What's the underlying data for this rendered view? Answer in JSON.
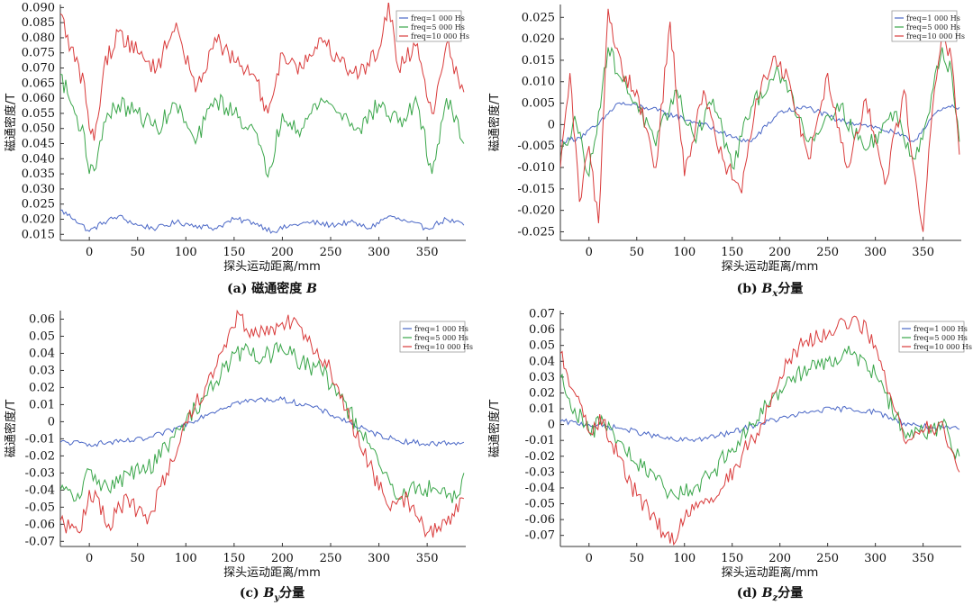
{
  "colors": {
    "freq_1000": "#4a67c6",
    "freq_5000": "#3aa64a",
    "freq_10000": "#d93b3b"
  },
  "chart_data": [
    {
      "id": "a",
      "type": "line",
      "caption_prefix": "(a) 磁通密度 ",
      "caption_symbol": "B",
      "caption_sub": "",
      "caption_suffix": "",
      "xlabel": "探头运动距离/mm",
      "ylabel": "磁通密度/T",
      "xlim": [
        -30,
        390
      ],
      "ylim": [
        0.013,
        0.091
      ],
      "xticks": [
        0,
        50,
        100,
        150,
        200,
        250,
        300,
        350
      ],
      "xtick_labels": [
        "0",
        "50",
        "100",
        "150",
        "200",
        "250",
        "300",
        "350"
      ],
      "yticks": [
        0.015,
        0.02,
        0.025,
        0.03,
        0.035,
        0.04,
        0.045,
        0.05,
        0.055,
        0.06,
        0.065,
        0.07,
        0.075,
        0.08,
        0.085,
        0.09
      ],
      "ytick_labels": [
        "0.015",
        "0.020",
        "0.025",
        "0.030",
        "0.035",
        "0.040",
        "0.045",
        "0.050",
        "0.055",
        "0.060",
        "0.065",
        "0.070",
        "0.075",
        "0.080",
        "0.085",
        "0.090"
      ],
      "legend": [
        "freq=1 000 Hs",
        "freq=5 000 Hs",
        "freq=10 000 Hs"
      ],
      "legend_position": "top-right",
      "grid": false,
      "series": [
        {
          "name": "freq=1 000 Hs",
          "color": "#4a67c6",
          "x": [
            -30,
            -15,
            0,
            15,
            30,
            50,
            70,
            90,
            110,
            130,
            150,
            170,
            190,
            210,
            230,
            250,
            270,
            290,
            310,
            330,
            350,
            370,
            388
          ],
          "y": [
            0.023,
            0.02,
            0.016,
            0.019,
            0.021,
            0.018,
            0.017,
            0.019,
            0.018,
            0.017,
            0.02,
            0.019,
            0.016,
            0.018,
            0.019,
            0.018,
            0.019,
            0.017,
            0.021,
            0.019,
            0.017,
            0.02,
            0.018
          ]
        },
        {
          "name": "freq=5 000 Hs",
          "color": "#3aa64a",
          "x": [
            -30,
            -15,
            -5,
            0,
            5,
            15,
            30,
            50,
            70,
            90,
            110,
            130,
            150,
            170,
            185,
            200,
            220,
            240,
            260,
            280,
            300,
            320,
            340,
            355,
            370,
            388
          ],
          "y": [
            0.068,
            0.055,
            0.048,
            0.035,
            0.036,
            0.052,
            0.058,
            0.055,
            0.05,
            0.058,
            0.045,
            0.06,
            0.055,
            0.05,
            0.034,
            0.055,
            0.05,
            0.06,
            0.055,
            0.05,
            0.058,
            0.052,
            0.058,
            0.035,
            0.06,
            0.045
          ]
        },
        {
          "name": "freq=10 000 Hs",
          "color": "#d93b3b",
          "x": [
            -30,
            -15,
            -5,
            0,
            5,
            15,
            30,
            50,
            70,
            90,
            110,
            130,
            150,
            170,
            185,
            200,
            220,
            240,
            260,
            280,
            300,
            310,
            320,
            340,
            355,
            370,
            388
          ],
          "y": [
            0.088,
            0.072,
            0.065,
            0.05,
            0.046,
            0.07,
            0.082,
            0.075,
            0.07,
            0.085,
            0.062,
            0.08,
            0.072,
            0.068,
            0.055,
            0.075,
            0.07,
            0.08,
            0.072,
            0.068,
            0.076,
            0.092,
            0.07,
            0.078,
            0.055,
            0.078,
            0.062
          ]
        }
      ]
    },
    {
      "id": "b",
      "type": "line",
      "caption_prefix": "(b) ",
      "caption_symbol": "B",
      "caption_sub": "x",
      "caption_suffix": "分量",
      "xlabel": "探头运动距离/mm",
      "ylabel": "磁通密度/T",
      "xlim": [
        -30,
        390
      ],
      "ylim": [
        -0.027,
        0.028
      ],
      "xticks": [
        0,
        50,
        100,
        150,
        200,
        250,
        300,
        350
      ],
      "xtick_labels": [
        "0",
        "50",
        "100",
        "150",
        "200",
        "250",
        "300",
        "350"
      ],
      "yticks": [
        -0.025,
        -0.02,
        -0.015,
        -0.01,
        -0.005,
        0,
        0.005,
        0.01,
        0.015,
        0.02,
        0.025
      ],
      "ytick_labels": [
        "-0.025",
        "-0.020",
        "-0.015",
        "-0.010",
        "-0.005",
        "0",
        "0.005",
        "0.010",
        "0.015",
        "0.020",
        "0.025"
      ],
      "legend": [
        "freq=1 000 Hs",
        "freq=5 000 Hs",
        "freq=10 000 Hs"
      ],
      "legend_position": "top-right",
      "grid": false,
      "series": [
        {
          "name": "freq=1 000 Hs",
          "color": "#4a67c6",
          "x": [
            -30,
            -10,
            10,
            30,
            60,
            90,
            120,
            150,
            170,
            200,
            230,
            260,
            290,
            320,
            340,
            360,
            375,
            388
          ],
          "y": [
            -0.004,
            -0.003,
            0.0,
            0.005,
            0.004,
            0.002,
            0.0,
            -0.003,
            -0.004,
            0.003,
            0.004,
            0.001,
            0.0,
            -0.002,
            -0.004,
            0.002,
            0.004,
            0.004
          ]
        },
        {
          "name": "freq=5 000 Hs",
          "color": "#3aa64a",
          "x": [
            -30,
            -15,
            0,
            10,
            20,
            35,
            50,
            70,
            90,
            110,
            130,
            150,
            170,
            195,
            210,
            230,
            260,
            290,
            320,
            340,
            355,
            370,
            380,
            388
          ],
          "y": [
            -0.008,
            0.002,
            -0.012,
            0.003,
            0.018,
            0.01,
            0.005,
            -0.005,
            0.008,
            -0.003,
            0.006,
            -0.01,
            0.004,
            0.012,
            0.008,
            -0.004,
            0.005,
            -0.006,
            0.003,
            -0.008,
            0.002,
            0.018,
            0.012,
            -0.004
          ]
        },
        {
          "name": "freq=10 000 Hs",
          "color": "#d93b3b",
          "x": [
            -30,
            -20,
            -10,
            0,
            10,
            20,
            35,
            50,
            70,
            85,
            100,
            120,
            140,
            160,
            175,
            195,
            210,
            230,
            250,
            270,
            290,
            310,
            330,
            350,
            360,
            370,
            380,
            388
          ],
          "y": [
            -0.01,
            0.012,
            -0.018,
            -0.005,
            -0.023,
            0.027,
            0.012,
            0.008,
            -0.01,
            0.024,
            -0.012,
            0.008,
            -0.008,
            -0.016,
            0.006,
            0.016,
            0.01,
            -0.008,
            0.012,
            -0.01,
            0.006,
            -0.014,
            0.008,
            -0.025,
            0.004,
            0.022,
            0.015,
            -0.007
          ]
        }
      ]
    },
    {
      "id": "c",
      "type": "line",
      "caption_prefix": "(c) ",
      "caption_symbol": "B",
      "caption_sub": "y",
      "caption_suffix": "分量",
      "xlabel": "探头运动距离/mm",
      "ylabel": "磁通密度/T",
      "xlim": [
        -30,
        390
      ],
      "ylim": [
        -0.073,
        0.065
      ],
      "xticks": [
        0,
        50,
        100,
        150,
        200,
        250,
        300,
        350
      ],
      "xtick_labels": [
        "0",
        "50",
        "100",
        "150",
        "200",
        "250",
        "300",
        "350"
      ],
      "yticks": [
        -0.07,
        -0.06,
        -0.05,
        -0.04,
        -0.03,
        -0.02,
        -0.01,
        0,
        0.01,
        0.02,
        0.03,
        0.04,
        0.05,
        0.06
      ],
      "ytick_labels": [
        "-0.07",
        "-0.06",
        "-0.05",
        "-0.04",
        "-0.03",
        "-0.02",
        "-0.01",
        "0",
        "0.01",
        "0.02",
        "0.03",
        "0.04",
        "0.05",
        "0.06"
      ],
      "legend": [
        "freq=1 000 Hs",
        "freq=5 000 Hs",
        "freq=10 000 Hs"
      ],
      "legend_position": "top-right",
      "grid": false,
      "series": [
        {
          "name": "freq=1 000 Hs",
          "color": "#4a67c6",
          "x": [
            -30,
            0,
            30,
            60,
            90,
            120,
            150,
            180,
            200,
            230,
            260,
            290,
            320,
            350,
            388
          ],
          "y": [
            -0.012,
            -0.013,
            -0.012,
            -0.01,
            -0.004,
            0.004,
            0.011,
            0.013,
            0.013,
            0.009,
            0.002,
            -0.006,
            -0.011,
            -0.013,
            -0.012
          ]
        },
        {
          "name": "freq=5 000 Hs",
          "color": "#3aa64a",
          "x": [
            -30,
            -10,
            0,
            20,
            40,
            60,
            80,
            100,
            120,
            140,
            160,
            180,
            200,
            220,
            240,
            260,
            280,
            300,
            320,
            340,
            360,
            380,
            388
          ],
          "y": [
            -0.04,
            -0.045,
            -0.028,
            -0.04,
            -0.03,
            -0.028,
            -0.015,
            0.0,
            0.015,
            0.032,
            0.042,
            0.038,
            0.042,
            0.035,
            0.03,
            0.015,
            -0.005,
            -0.025,
            -0.045,
            -0.038,
            -0.04,
            -0.045,
            -0.03
          ]
        },
        {
          "name": "freq=10 000 Hs",
          "color": "#d93b3b",
          "x": [
            -30,
            -10,
            0,
            20,
            40,
            60,
            80,
            100,
            120,
            140,
            155,
            170,
            190,
            210,
            230,
            250,
            270,
            290,
            310,
            330,
            350,
            370,
            388
          ],
          "y": [
            -0.058,
            -0.065,
            -0.04,
            -0.06,
            -0.045,
            -0.06,
            -0.03,
            0.0,
            0.02,
            0.045,
            0.063,
            0.05,
            0.055,
            0.058,
            0.045,
            0.03,
            0.0,
            -0.025,
            -0.05,
            -0.045,
            -0.065,
            -0.06,
            -0.045
          ]
        }
      ]
    },
    {
      "id": "d",
      "type": "line",
      "caption_prefix": "(d) ",
      "caption_symbol": "B",
      "caption_sub": "z",
      "caption_suffix": "分量",
      "xlabel": "探头运动距离/mm",
      "ylabel": "磁通密度/T",
      "xlim": [
        -30,
        390
      ],
      "ylim": [
        -0.077,
        0.072
      ],
      "xticks": [
        0,
        50,
        100,
        150,
        200,
        250,
        300,
        350
      ],
      "xtick_labels": [
        "0",
        "50",
        "100",
        "150",
        "200",
        "250",
        "300",
        "350"
      ],
      "yticks": [
        -0.07,
        -0.06,
        -0.05,
        -0.04,
        -0.03,
        -0.02,
        -0.01,
        0,
        0.01,
        0.02,
        0.03,
        0.04,
        0.05,
        0.06,
        0.07
      ],
      "ytick_labels": [
        "-0.07",
        "-0.06",
        "-0.05",
        "-0.04",
        "-0.03",
        "-0.02",
        "-0.01",
        "0",
        "0.01",
        "0.02",
        "0.03",
        "0.04",
        "0.05",
        "0.06",
        "0.07"
      ],
      "legend": [
        "freq=1 000 Hs",
        "freq=5 000 Hs",
        "freq=10 000 Hs"
      ],
      "legend_position": "top-right",
      "grid": false,
      "series": [
        {
          "name": "freq=1 000 Hs",
          "color": "#4a67c6",
          "x": [
            -30,
            0,
            30,
            60,
            90,
            120,
            150,
            180,
            210,
            240,
            270,
            300,
            330,
            360,
            388
          ],
          "y": [
            0.002,
            0.0,
            -0.002,
            -0.006,
            -0.01,
            -0.009,
            -0.005,
            0.001,
            0.005,
            0.009,
            0.01,
            0.008,
            0.001,
            -0.002,
            -0.003
          ]
        },
        {
          "name": "freq=5 000 Hs",
          "color": "#3aa64a",
          "x": [
            -30,
            -15,
            0,
            15,
            30,
            50,
            70,
            90,
            110,
            130,
            150,
            170,
            190,
            210,
            230,
            250,
            270,
            290,
            310,
            330,
            350,
            370,
            388
          ],
          "y": [
            0.03,
            0.01,
            -0.005,
            0.002,
            -0.01,
            -0.025,
            -0.035,
            -0.045,
            -0.04,
            -0.03,
            -0.015,
            0.0,
            0.015,
            0.03,
            0.035,
            0.04,
            0.045,
            0.04,
            0.02,
            -0.005,
            -0.005,
            0.0,
            -0.02
          ]
        },
        {
          "name": "freq=10 000 Hs",
          "color": "#d93b3b",
          "x": [
            -30,
            -15,
            0,
            15,
            30,
            50,
            70,
            85,
            100,
            120,
            140,
            160,
            180,
            200,
            220,
            240,
            260,
            280,
            300,
            315,
            330,
            350,
            370,
            388
          ],
          "y": [
            0.045,
            0.02,
            -0.005,
            0.003,
            -0.02,
            -0.045,
            -0.06,
            -0.075,
            -0.06,
            -0.05,
            -0.04,
            -0.02,
            0.0,
            0.03,
            0.05,
            0.055,
            0.062,
            0.068,
            0.05,
            0.02,
            -0.01,
            -0.005,
            0.002,
            -0.03
          ]
        }
      ]
    }
  ]
}
